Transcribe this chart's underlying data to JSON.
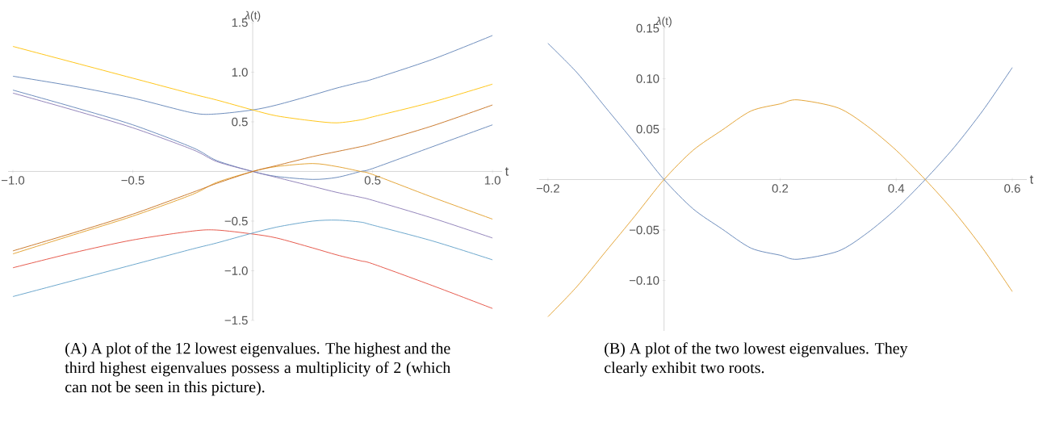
{
  "chart_data": [
    {
      "type": "line",
      "xlabel": "t",
      "ylabel": "*λ*(t)",
      "marker": "none",
      "x": [
        -1,
        -0.75,
        -0.5,
        -0.25,
        -0.15,
        0,
        0.1,
        0.25,
        0.35,
        0.45,
        0.5,
        0.75,
        1
      ],
      "xlim": [
        -1.02,
        1.04
      ],
      "ylim": [
        -1.5,
        1.5
      ],
      "xticks": [
        {
          "value": -1,
          "label": "−1.0"
        },
        {
          "value": -0.5,
          "label": "−0.5"
        },
        {
          "value": 0.5,
          "label": "0.5"
        },
        {
          "value": 1,
          "label": "1.0"
        }
      ],
      "yticks": [
        {
          "value": -1.5,
          "label": "−1.5"
        },
        {
          "value": -1,
          "label": "−1.0"
        },
        {
          "value": -0.5,
          "label": "−0.5"
        },
        {
          "value": 0.5,
          "label": "0.5"
        },
        {
          "value": 1,
          "label": "1.0"
        },
        {
          "value": 1.5,
          "label": "1.5"
        }
      ],
      "series": [
        {
          "color": "#5e81b5",
          "values": [
            0.96,
            0.86,
            0.74,
            0.59,
            0.58,
            0.62,
            0.67,
            0.77,
            0.84,
            0.9,
            0.93,
            1.13,
            1.37
          ]
        },
        {
          "color": "#e3493a",
          "values": [
            -0.97,
            -0.82,
            -0.69,
            -0.6,
            -0.59,
            -0.63,
            -0.67,
            -0.77,
            -0.84,
            -0.9,
            -0.93,
            -1.15,
            -1.38
          ]
        },
        {
          "color": "#ffbf00",
          "values": [
            1.26,
            1.1,
            0.94,
            0.78,
            0.72,
            0.62,
            0.56,
            0.51,
            0.49,
            0.52,
            0.55,
            0.7,
            0.88
          ]
        },
        {
          "color": "#5d9ec7",
          "values": [
            -1.26,
            -1.1,
            -0.94,
            -0.78,
            -0.72,
            -0.62,
            -0.56,
            -0.5,
            -0.49,
            -0.51,
            -0.54,
            -0.7,
            -0.89
          ]
        },
        {
          "color": "#5e81b5",
          "values": [
            0.82,
            0.65,
            0.47,
            0.24,
            0.11,
            0,
            -0.05,
            -0.08,
            -0.06,
            0,
            0.03,
            0.25,
            0.47
          ]
        },
        {
          "color": "#e19c24",
          "values": [
            -0.83,
            -0.64,
            -0.45,
            -0.23,
            -0.11,
            0,
            0.05,
            0.08,
            0.05,
            0,
            -0.03,
            -0.26,
            -0.48
          ]
        },
        {
          "color": "#8778b3",
          "values": [
            0.79,
            0.62,
            0.44,
            0.22,
            0.1,
            0,
            -0.06,
            -0.15,
            -0.21,
            -0.26,
            -0.29,
            -0.47,
            -0.67
          ]
        },
        {
          "color": "#c56e1a",
          "values": [
            -0.8,
            -0.62,
            -0.43,
            -0.21,
            -0.12,
            0,
            0.06,
            0.15,
            0.2,
            0.25,
            0.28,
            0.46,
            0.67
          ]
        }
      ],
      "annotations": [
        "(A) A plot of the 12 lowest eigenvalues. The highest and the third highest eigenvalues possess a multiplicity of 2 (which can not be seen in this picture)."
      ]
    },
    {
      "type": "line",
      "xlabel": "t",
      "ylabel": "*λ*(t)",
      "marker": "none",
      "x": [
        -0.2,
        -0.15,
        -0.1,
        -0.05,
        0,
        0.05,
        0.1,
        0.15,
        0.2,
        0.23,
        0.3,
        0.35,
        0.4,
        0.45,
        0.5,
        0.55,
        0.6
      ],
      "xlim": [
        -0.215,
        0.625
      ],
      "ylim": [
        -0.15,
        0.15
      ],
      "xticks": [
        {
          "value": -0.2,
          "label": "−0.2"
        },
        {
          "value": 0.2,
          "label": "0.2"
        },
        {
          "value": 0.4,
          "label": "0.4"
        },
        {
          "value": 0.6,
          "label": "0.6"
        }
      ],
      "yticks": [
        {
          "value": -0.1,
          "label": "−0.10"
        },
        {
          "value": -0.05,
          "label": "−0.05"
        },
        {
          "value": 0.05,
          "label": "0.05"
        },
        {
          "value": 0.1,
          "label": "0.10"
        },
        {
          "value": 0.15,
          "label": "0.15"
        }
      ],
      "series": [
        {
          "color": "#5e81b5",
          "values": [
            0.135,
            0.106,
            0.071,
            0.036,
            0,
            -0.029,
            -0.049,
            -0.068,
            -0.075,
            -0.079,
            -0.071,
            -0.053,
            -0.029,
            0,
            0.032,
            0.069,
            0.111
          ]
        },
        {
          "color": "#e19c24",
          "values": [
            -0.136,
            -0.106,
            -0.071,
            -0.036,
            0,
            0.029,
            0.049,
            0.068,
            0.075,
            0.079,
            0.071,
            0.053,
            0.029,
            0,
            -0.032,
            -0.069,
            -0.111
          ]
        }
      ],
      "annotations": [
        "(B) A plot of the two lowest eigenvalues. They clearly exhibit two roots."
      ]
    }
  ]
}
